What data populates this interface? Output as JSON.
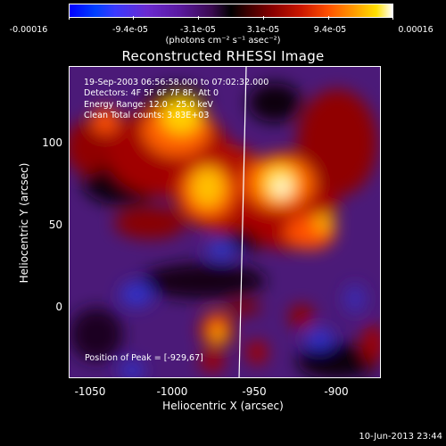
{
  "colorbar": {
    "ticks": [
      "-0.00016",
      "-9.4e-05",
      "-3.1e-05",
      "3.1e-05",
      "9.4e-05",
      "0.00016"
    ],
    "units": "(photons cm⁻² s⁻¹ asec⁻²)"
  },
  "title": "Reconstructed RHESSI Image",
  "info": {
    "time": "19-Sep-2003 06:56:58.000 to 07:02:32.000",
    "detectors": "Detectors: 4F 5F 6F 7F 8F, Att 0",
    "energy": "Energy Range: 12.0 - 25.0 keV",
    "clean": "Clean     Total counts: 3.83E+03"
  },
  "peak": "Position of Peak = [-929,67]",
  "xaxis": {
    "label": "Heliocentric X (arcsec)",
    "ticks": [
      "-1050",
      "-1000",
      "-950",
      "-900"
    ]
  },
  "yaxis": {
    "label": "Heliocentric Y (arcsec)",
    "ticks": [
      "100",
      "50",
      "0"
    ]
  },
  "date": "10-Jun-2013 23:44"
}
